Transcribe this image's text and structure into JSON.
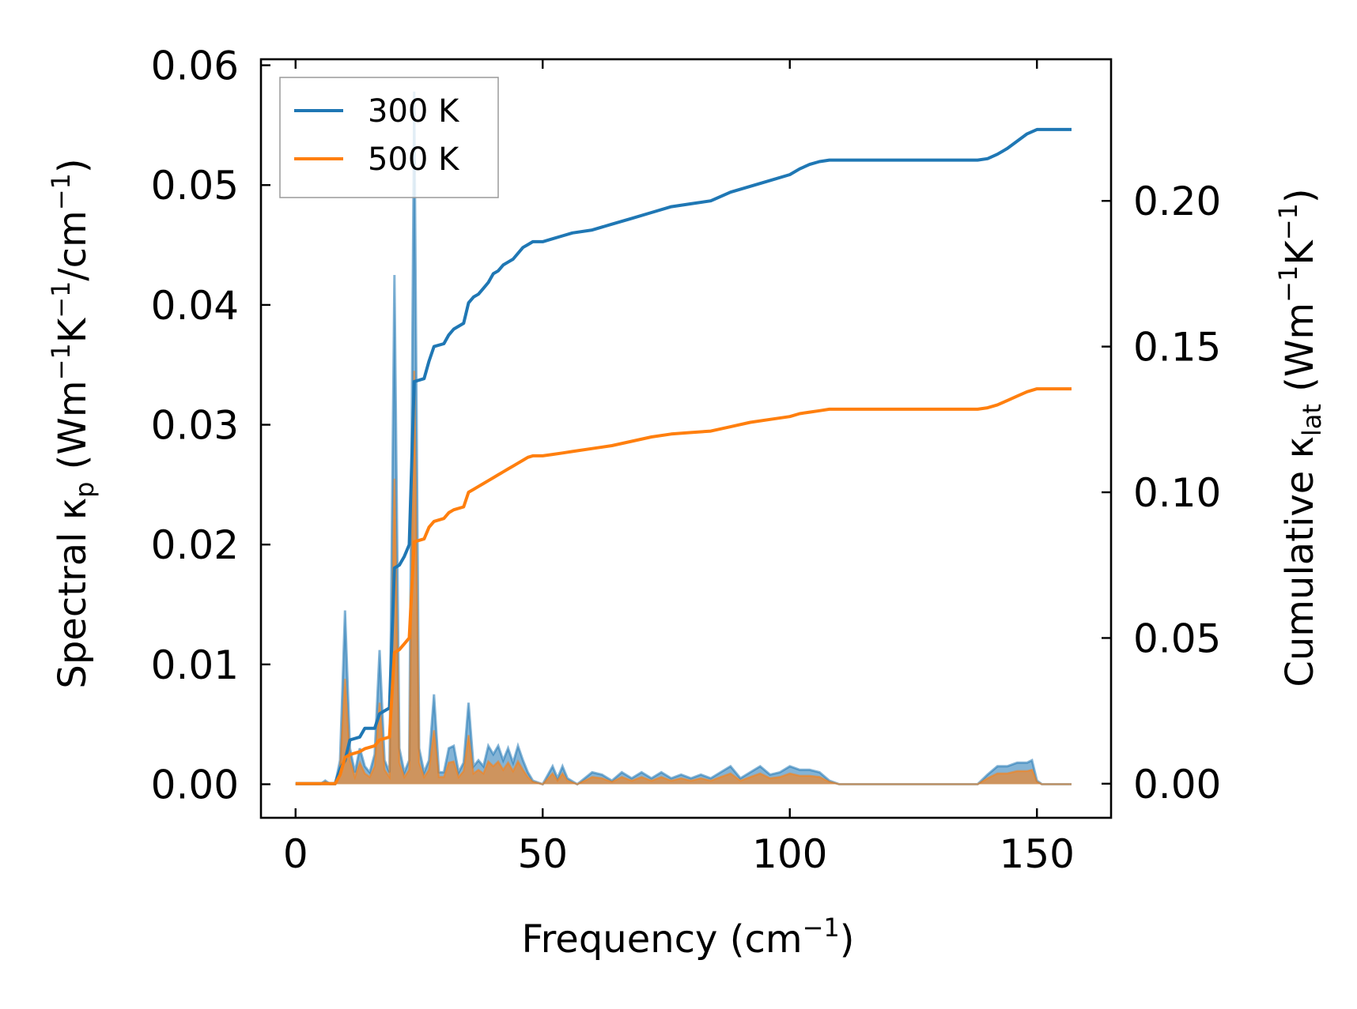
{
  "chart_data": {
    "type": "line",
    "xlabel": "Frequency (cm",
    "xlabel_sup": "−1",
    "xlabel_end": ")",
    "ylabel_left": "Spectral κp (Wm−1K−1/cm−1)",
    "ylabel_right": "Cumulative κlat (Wm−1K−1)",
    "xlim": [
      -7,
      165
    ],
    "ylim_left": [
      -0.0028,
      0.0605
    ],
    "ylim_right": [
      -0.0117,
      0.2486
    ],
    "x_ticks": [
      0,
      50,
      100,
      150
    ],
    "x_tick_labels": [
      "0",
      "50",
      "100",
      "150"
    ],
    "y_left_ticks": [
      0,
      0.01,
      0.02,
      0.03,
      0.04,
      0.05,
      0.06
    ],
    "y_left_tick_labels": [
      "0.00",
      "0.01",
      "0.02",
      "0.03",
      "0.04",
      "0.05",
      "0.06"
    ],
    "y_right_ticks": [
      0,
      0.05,
      0.1,
      0.15,
      0.2
    ],
    "y_right_tick_labels": [
      "0.00",
      "0.05",
      "0.10",
      "0.15",
      "0.20"
    ],
    "grid": false,
    "legend_position": "top-left",
    "colors": {
      "300 K": "#1f77b4",
      "500 K": "#ff7f0e",
      "fill_300": "#1f77b4",
      "fill_500": "#ff7f0e"
    },
    "spectral": [
      {
        "name": "300 K",
        "axis": "left",
        "points": [
          [
            0,
            0
          ],
          [
            5,
            0
          ],
          [
            6,
            0.0003
          ],
          [
            7,
            0
          ],
          [
            8,
            0
          ],
          [
            9,
            0.002
          ],
          [
            10,
            0.0145
          ],
          [
            11,
            0.003
          ],
          [
            12,
            0.001
          ],
          [
            13,
            0.003
          ],
          [
            14,
            0.0015
          ],
          [
            15,
            0.001
          ],
          [
            16,
            0.0025
          ],
          [
            17,
            0.0112
          ],
          [
            18,
            0.002
          ],
          [
            19,
            0.001
          ],
          [
            20,
            0.0425
          ],
          [
            21,
            0.003
          ],
          [
            22,
            0.001
          ],
          [
            23,
            0.002
          ],
          [
            24,
            0.0578
          ],
          [
            25,
            0.003
          ],
          [
            26,
            0.001
          ],
          [
            27,
            0.002
          ],
          [
            28,
            0.0075
          ],
          [
            29,
            0.001
          ],
          [
            30,
            0.001
          ],
          [
            31,
            0.003
          ],
          [
            32,
            0.0032
          ],
          [
            33,
            0.001
          ],
          [
            34,
            0.0018
          ],
          [
            35,
            0.0068
          ],
          [
            36,
            0.0015
          ],
          [
            37,
            0.002
          ],
          [
            38,
            0.0015
          ],
          [
            39,
            0.0032
          ],
          [
            40,
            0.0025
          ],
          [
            41,
            0.0032
          ],
          [
            42,
            0.002
          ],
          [
            43,
            0.003
          ],
          [
            44,
            0.0018
          ],
          [
            45,
            0.0032
          ],
          [
            46,
            0.002
          ],
          [
            47,
            0.001
          ],
          [
            48,
            0.0003
          ],
          [
            50,
            0
          ],
          [
            52,
            0.0015
          ],
          [
            53,
            0.0005
          ],
          [
            54,
            0.0015
          ],
          [
            55,
            0.0005
          ],
          [
            57,
            0
          ],
          [
            60,
            0.001
          ],
          [
            62,
            0.0008
          ],
          [
            64,
            0.0003
          ],
          [
            66,
            0.001
          ],
          [
            68,
            0.0005
          ],
          [
            70,
            0.001
          ],
          [
            72,
            0.0005
          ],
          [
            74,
            0.001
          ],
          [
            76,
            0.0005
          ],
          [
            78,
            0.0008
          ],
          [
            80,
            0.0005
          ],
          [
            82,
            0.0008
          ],
          [
            84,
            0.0005
          ],
          [
            86,
            0.001
          ],
          [
            88,
            0.0015
          ],
          [
            90,
            0.0005
          ],
          [
            92,
            0.001
          ],
          [
            94,
            0.0015
          ],
          [
            96,
            0.0008
          ],
          [
            98,
            0.001
          ],
          [
            100,
            0.0015
          ],
          [
            102,
            0.0012
          ],
          [
            104,
            0.0012
          ],
          [
            106,
            0.001
          ],
          [
            108,
            0.0003
          ],
          [
            110,
            0
          ],
          [
            138,
            0
          ],
          [
            140,
            0.0008
          ],
          [
            142,
            0.0015
          ],
          [
            144,
            0.0015
          ],
          [
            146,
            0.0018
          ],
          [
            148,
            0.0018
          ],
          [
            149,
            0.002
          ],
          [
            150,
            0.0003
          ],
          [
            151,
            0
          ],
          [
            157,
            0
          ]
        ]
      },
      {
        "name": "500 K",
        "axis": "left",
        "points": [
          [
            0,
            0
          ],
          [
            5,
            0
          ],
          [
            6,
            0.0002
          ],
          [
            7,
            0
          ],
          [
            8,
            0
          ],
          [
            9,
            0.0012
          ],
          [
            10,
            0.0088
          ],
          [
            11,
            0.002
          ],
          [
            12,
            0.0006
          ],
          [
            13,
            0.0018
          ],
          [
            14,
            0.0009
          ],
          [
            15,
            0.0006
          ],
          [
            16,
            0.0015
          ],
          [
            17,
            0.0068
          ],
          [
            18,
            0.0012
          ],
          [
            19,
            0.0006
          ],
          [
            20,
            0.0255
          ],
          [
            21,
            0.0018
          ],
          [
            22,
            0.0006
          ],
          [
            23,
            0.0012
          ],
          [
            24,
            0.0345
          ],
          [
            25,
            0.0018
          ],
          [
            26,
            0.0006
          ],
          [
            27,
            0.0012
          ],
          [
            28,
            0.0045
          ],
          [
            29,
            0.0006
          ],
          [
            30,
            0.0006
          ],
          [
            31,
            0.0018
          ],
          [
            32,
            0.0019
          ],
          [
            33,
            0.0006
          ],
          [
            34,
            0.0011
          ],
          [
            35,
            0.0041
          ],
          [
            36,
            0.0009
          ],
          [
            37,
            0.0012
          ],
          [
            38,
            0.0009
          ],
          [
            39,
            0.0019
          ],
          [
            40,
            0.0015
          ],
          [
            41,
            0.0019
          ],
          [
            42,
            0.0012
          ],
          [
            43,
            0.0018
          ],
          [
            44,
            0.0011
          ],
          [
            45,
            0.0019
          ],
          [
            46,
            0.0012
          ],
          [
            47,
            0.0006
          ],
          [
            48,
            0.0002
          ],
          [
            50,
            0
          ],
          [
            52,
            0.0009
          ],
          [
            53,
            0.0003
          ],
          [
            54,
            0.0009
          ],
          [
            55,
            0.0003
          ],
          [
            57,
            0
          ],
          [
            60,
            0.0006
          ],
          [
            62,
            0.0005
          ],
          [
            64,
            0.0002
          ],
          [
            66,
            0.0006
          ],
          [
            68,
            0.0003
          ],
          [
            70,
            0.0006
          ],
          [
            72,
            0.0003
          ],
          [
            74,
            0.0006
          ],
          [
            76,
            0.0003
          ],
          [
            78,
            0.0005
          ],
          [
            80,
            0.0003
          ],
          [
            82,
            0.0005
          ],
          [
            84,
            0.0003
          ],
          [
            86,
            0.0006
          ],
          [
            88,
            0.0009
          ],
          [
            90,
            0.0003
          ],
          [
            92,
            0.0006
          ],
          [
            94,
            0.0009
          ],
          [
            96,
            0.0005
          ],
          [
            98,
            0.0006
          ],
          [
            100,
            0.0009
          ],
          [
            102,
            0.0007
          ],
          [
            104,
            0.0007
          ],
          [
            106,
            0.0006
          ],
          [
            108,
            0.0002
          ],
          [
            110,
            0
          ],
          [
            138,
            0
          ],
          [
            140,
            0.0005
          ],
          [
            142,
            0.0009
          ],
          [
            144,
            0.0009
          ],
          [
            146,
            0.0011
          ],
          [
            148,
            0.0011
          ],
          [
            149,
            0.0012
          ],
          [
            150,
            0.0002
          ],
          [
            151,
            0
          ],
          [
            157,
            0
          ]
        ]
      }
    ],
    "series": [
      {
        "name": "300 K",
        "axis": "right",
        "points": [
          [
            0,
            0
          ],
          [
            8,
            0
          ],
          [
            9,
            0.005
          ],
          [
            10,
            0.008
          ],
          [
            11,
            0.015
          ],
          [
            13,
            0.016
          ],
          [
            14,
            0.019
          ],
          [
            16,
            0.019
          ],
          [
            17,
            0.024
          ],
          [
            19,
            0.026
          ],
          [
            20,
            0.074
          ],
          [
            21,
            0.075
          ],
          [
            22,
            0.078
          ],
          [
            23,
            0.082
          ],
          [
            24,
            0.138
          ],
          [
            26,
            0.139
          ],
          [
            27,
            0.145
          ],
          [
            28,
            0.15
          ],
          [
            30,
            0.151
          ],
          [
            31,
            0.154
          ],
          [
            32,
            0.156
          ],
          [
            34,
            0.158
          ],
          [
            35,
            0.165
          ],
          [
            36,
            0.167
          ],
          [
            37,
            0.168
          ],
          [
            38,
            0.17
          ],
          [
            39,
            0.172
          ],
          [
            40,
            0.175
          ],
          [
            41,
            0.176
          ],
          [
            42,
            0.178
          ],
          [
            43,
            0.179
          ],
          [
            44,
            0.18
          ],
          [
            45,
            0.182
          ],
          [
            46,
            0.184
          ],
          [
            47,
            0.185
          ],
          [
            48,
            0.186
          ],
          [
            50,
            0.186
          ],
          [
            52,
            0.187
          ],
          [
            54,
            0.188
          ],
          [
            56,
            0.189
          ],
          [
            60,
            0.19
          ],
          [
            64,
            0.192
          ],
          [
            68,
            0.194
          ],
          [
            72,
            0.196
          ],
          [
            76,
            0.198
          ],
          [
            80,
            0.199
          ],
          [
            84,
            0.2
          ],
          [
            88,
            0.203
          ],
          [
            92,
            0.205
          ],
          [
            96,
            0.207
          ],
          [
            100,
            0.209
          ],
          [
            102,
            0.211
          ],
          [
            104,
            0.2125
          ],
          [
            106,
            0.2135
          ],
          [
            108,
            0.214
          ],
          [
            110,
            0.214
          ],
          [
            138,
            0.214
          ],
          [
            140,
            0.2145
          ],
          [
            142,
            0.216
          ],
          [
            144,
            0.218
          ],
          [
            146,
            0.2205
          ],
          [
            148,
            0.223
          ],
          [
            150,
            0.2245
          ],
          [
            157,
            0.2245
          ]
        ]
      },
      {
        "name": "500 K",
        "axis": "right",
        "points": [
          [
            0,
            0
          ],
          [
            8,
            0
          ],
          [
            9,
            0.003
          ],
          [
            10,
            0.009
          ],
          [
            11,
            0.01
          ],
          [
            13,
            0.011
          ],
          [
            14,
            0.012
          ],
          [
            16,
            0.013
          ],
          [
            17,
            0.015
          ],
          [
            19,
            0.016
          ],
          [
            20,
            0.045
          ],
          [
            21,
            0.046
          ],
          [
            22,
            0.048
          ],
          [
            23,
            0.05
          ],
          [
            24,
            0.083
          ],
          [
            26,
            0.084
          ],
          [
            27,
            0.088
          ],
          [
            28,
            0.09
          ],
          [
            30,
            0.091
          ],
          [
            31,
            0.093
          ],
          [
            32,
            0.094
          ],
          [
            34,
            0.095
          ],
          [
            35,
            0.1
          ],
          [
            36,
            0.101
          ],
          [
            37,
            0.102
          ],
          [
            38,
            0.103
          ],
          [
            39,
            0.104
          ],
          [
            40,
            0.105
          ],
          [
            41,
            0.106
          ],
          [
            42,
            0.107
          ],
          [
            43,
            0.108
          ],
          [
            44,
            0.109
          ],
          [
            45,
            0.11
          ],
          [
            46,
            0.111
          ],
          [
            47,
            0.112
          ],
          [
            48,
            0.1125
          ],
          [
            50,
            0.1125
          ],
          [
            52,
            0.113
          ],
          [
            54,
            0.1135
          ],
          [
            56,
            0.114
          ],
          [
            60,
            0.115
          ],
          [
            64,
            0.116
          ],
          [
            68,
            0.1175
          ],
          [
            72,
            0.119
          ],
          [
            76,
            0.12
          ],
          [
            80,
            0.1205
          ],
          [
            84,
            0.121
          ],
          [
            88,
            0.1225
          ],
          [
            92,
            0.124
          ],
          [
            96,
            0.125
          ],
          [
            100,
            0.126
          ],
          [
            102,
            0.127
          ],
          [
            104,
            0.1275
          ],
          [
            106,
            0.128
          ],
          [
            108,
            0.1285
          ],
          [
            110,
            0.1285
          ],
          [
            138,
            0.1285
          ],
          [
            140,
            0.129
          ],
          [
            142,
            0.13
          ],
          [
            144,
            0.1315
          ],
          [
            146,
            0.133
          ],
          [
            148,
            0.1345
          ],
          [
            150,
            0.1355
          ],
          [
            157,
            0.1355
          ]
        ]
      }
    ]
  }
}
